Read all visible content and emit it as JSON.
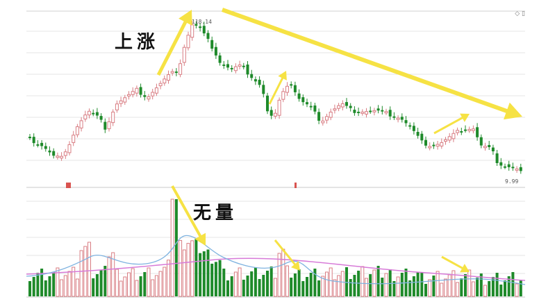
{
  "annotations": {
    "up_label": "上涨",
    "volume_label": "无量"
  },
  "price_panel": {
    "high_price_label": "118.14",
    "low_price_label": "9.99",
    "corner_icons": [
      "diamond-icon",
      "window-icon"
    ]
  },
  "colors": {
    "up": "#f0a8ab",
    "down": "#1e8a2a",
    "ma_light": "#7fb3e0",
    "ma_long": "#d77ad8",
    "arrow": "#f5e03a",
    "marker": "#d9534f",
    "grid": "#e6e6e6"
  }
}
